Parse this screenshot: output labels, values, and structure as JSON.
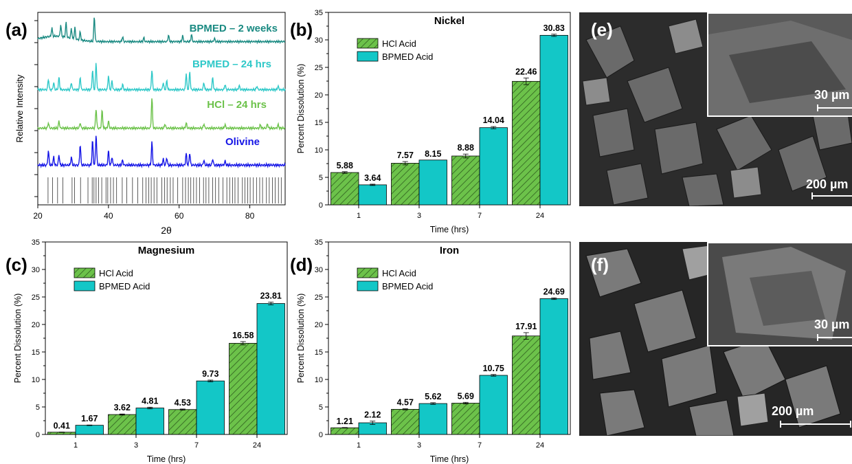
{
  "panels": {
    "a": "(a)",
    "b": "(b)",
    "c": "(c)",
    "d": "(d)",
    "e": "(e)",
    "f": "(f)"
  },
  "colors": {
    "hcl": "#6cc24a",
    "bpmed": "#13c7c7",
    "olivine": "#1414e6",
    "hcl_line": "#6cc24a",
    "bpmed24": "#2ec8c8",
    "bpmed2w": "#1a8a82"
  },
  "sem": {
    "e": {
      "inset_scale": "30 µm",
      "main_scale": "200 µm"
    },
    "f": {
      "inset_scale": "30 µm",
      "main_scale": "200 µm"
    }
  },
  "chart_data": [
    {
      "type": "line",
      "panel": "a",
      "title": "",
      "xlabel": "2θ",
      "ylabel": "Relative Intensity",
      "xlim": [
        20,
        90
      ],
      "x_ticks": [
        "20",
        "40",
        "60",
        "80"
      ],
      "series": [
        {
          "name": "BPMED – 2 weeks",
          "peaks": [
            [
              24,
              0.25
            ],
            [
              26.5,
              0.35
            ],
            [
              28,
              0.45
            ],
            [
              29.5,
              0.3
            ],
            [
              30.5,
              0.35
            ],
            [
              32,
              0.25
            ],
            [
              36,
              0.75
            ],
            [
              44,
              0.15
            ],
            [
              50,
              0.12
            ],
            [
              57,
              0.2
            ],
            [
              61,
              0.18
            ],
            [
              63.5,
              0.22
            ],
            [
              70,
              0.1
            ]
          ]
        },
        {
          "name": "BPMED – 24 hrs",
          "peaks": [
            [
              23,
              0.3
            ],
            [
              24.5,
              0.2
            ],
            [
              26,
              0.35
            ],
            [
              29.5,
              0.2
            ],
            [
              32,
              0.35
            ],
            [
              35.5,
              0.55
            ],
            [
              36.5,
              0.75
            ],
            [
              40,
              0.4
            ],
            [
              41,
              0.25
            ],
            [
              44,
              0.15
            ],
            [
              52.3,
              0.55
            ],
            [
              55.5,
              0.2
            ],
            [
              56.5,
              0.25
            ],
            [
              62,
              0.45
            ],
            [
              63,
              0.5
            ],
            [
              67,
              0.2
            ],
            [
              69.5,
              0.35
            ],
            [
              73,
              0.15
            ],
            [
              77,
              0.12
            ],
            [
              82,
              0.1
            ],
            [
              88,
              0.1
            ]
          ]
        },
        {
          "name": "HCl – 24 hrs",
          "peaks": [
            [
              23,
              0.15
            ],
            [
              26,
              0.2
            ],
            [
              32,
              0.15
            ],
            [
              36.5,
              0.55
            ],
            [
              38.2,
              0.5
            ],
            [
              40,
              0.2
            ],
            [
              52.3,
              0.85
            ],
            [
              56,
              0.12
            ],
            [
              62,
              0.15
            ],
            [
              67,
              0.12
            ],
            [
              73,
              0.1
            ],
            [
              83,
              0.1
            ],
            [
              85,
              0.12
            ],
            [
              88,
              0.1
            ]
          ]
        },
        {
          "name": "Olivine",
          "peaks": [
            [
              23,
              0.35
            ],
            [
              24.5,
              0.2
            ],
            [
              26,
              0.25
            ],
            [
              29.5,
              0.2
            ],
            [
              32,
              0.5
            ],
            [
              35.5,
              0.6
            ],
            [
              36.5,
              0.75
            ],
            [
              40,
              0.35
            ],
            [
              41,
              0.2
            ],
            [
              44,
              0.12
            ],
            [
              52.3,
              0.55
            ],
            [
              55.5,
              0.15
            ],
            [
              56.5,
              0.18
            ],
            [
              62,
              0.28
            ],
            [
              63,
              0.3
            ],
            [
              67,
              0.12
            ],
            [
              69.5,
              0.15
            ],
            [
              73,
              0.1
            ]
          ]
        }
      ],
      "reference_ticks": [
        22.9,
        24.2,
        25.6,
        27.1,
        29.7,
        30.4,
        32.1,
        34.2,
        35.4,
        35.9,
        36.5,
        37.2,
        38.1,
        39.3,
        39.8,
        40.6,
        41.4,
        42.3,
        43.9,
        45.2,
        46.8,
        48.3,
        49.7,
        50.6,
        51.4,
        52.1,
        52.9,
        53.7,
        55.1,
        55.9,
        56.6,
        57.5,
        58.3,
        59.6,
        61.0,
        61.8,
        62.6,
        63.3,
        64.1,
        64.9,
        65.8,
        66.9,
        67.6,
        68.4,
        69.5,
        70.3,
        71.2,
        72.4,
        73.5,
        74.3,
        75.1,
        75.8,
        76.7,
        77.9,
        78.6,
        79.4,
        80.1,
        81.0,
        81.9,
        82.8,
        83.6,
        84.7,
        85.5,
        86.4,
        87.2,
        88.1,
        88.9
      ]
    },
    {
      "type": "bar",
      "panel": "b",
      "title": "Nickel",
      "xlabel": "Time (hrs)",
      "ylabel": "Percent Dissolution (%)",
      "categories": [
        "1",
        "3",
        "7",
        "24"
      ],
      "ylim": [
        0,
        35
      ],
      "y_ticks": [
        "0",
        "5",
        "10",
        "15",
        "20",
        "25",
        "30",
        "35"
      ],
      "series": [
        {
          "name": "HCl Acid",
          "values": [
            5.88,
            7.57,
            8.88,
            22.46
          ],
          "labels": [
            "5.88",
            "7.57",
            "8.88",
            "22.46"
          ],
          "err": [
            0.15,
            0.3,
            0.35,
            0.6
          ]
        },
        {
          "name": "BPMED Acid",
          "values": [
            3.64,
            8.15,
            14.04,
            30.83
          ],
          "labels": [
            "3.64",
            "8.15",
            "14.04",
            "30.83"
          ],
          "err": [
            0.12,
            0.0,
            0.2,
            0.2
          ]
        }
      ]
    },
    {
      "type": "bar",
      "panel": "c",
      "title": "Magnesium",
      "xlabel": "Time (hrs)",
      "ylabel": "Percent Dissolution (%)",
      "categories": [
        "1",
        "3",
        "7",
        "24"
      ],
      "ylim": [
        0,
        35
      ],
      "y_ticks": [
        "0",
        "5",
        "10",
        "15",
        "20",
        "25",
        "30",
        "35"
      ],
      "series": [
        {
          "name": "HCl Acid",
          "values": [
            0.41,
            3.62,
            4.53,
            16.58
          ],
          "labels": [
            "0.41",
            "3.62",
            "4.53",
            "16.58"
          ],
          "err": [
            0.03,
            0.1,
            0.1,
            0.3
          ]
        },
        {
          "name": "BPMED Acid",
          "values": [
            1.67,
            4.81,
            9.73,
            23.81
          ],
          "labels": [
            "1.67",
            "4.81",
            "9.73",
            "23.81"
          ],
          "err": [
            0.05,
            0.15,
            0.15,
            0.25
          ]
        }
      ]
    },
    {
      "type": "bar",
      "panel": "d",
      "title": "Iron",
      "xlabel": "Time (hrs)",
      "ylabel": "Percent Dissolution (%)",
      "categories": [
        "1",
        "3",
        "7",
        "24"
      ],
      "ylim": [
        0,
        35
      ],
      "y_ticks": [
        "0",
        "5",
        "10",
        "15",
        "20",
        "25",
        "30",
        "35"
      ],
      "series": [
        {
          "name": "HCl Acid",
          "values": [
            1.21,
            4.57,
            5.69,
            17.91
          ],
          "labels": [
            "1.21",
            "4.57",
            "5.69",
            "17.91"
          ],
          "err": [
            0.05,
            0.1,
            0.15,
            0.6
          ]
        },
        {
          "name": "BPMED Acid",
          "values": [
            2.12,
            5.62,
            10.75,
            24.69
          ],
          "labels": [
            "2.12",
            "5.62",
            "10.75",
            "24.69"
          ],
          "err": [
            0.3,
            0.15,
            0.15,
            0.15
          ]
        }
      ]
    }
  ]
}
